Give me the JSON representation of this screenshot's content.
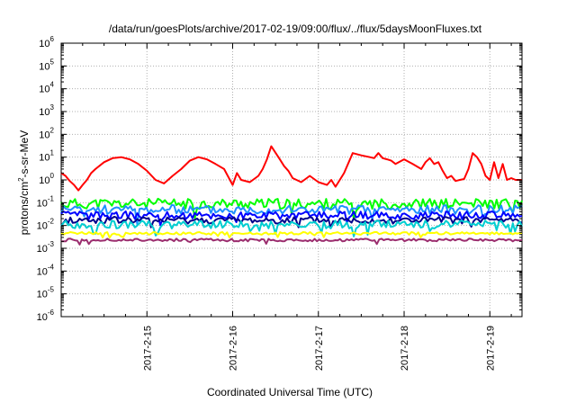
{
  "chart_data": {
    "type": "line",
    "title": "/data/run/goesPlots/archive/2017-02-19/09:00/flux/../flux/5daysMoonFluxes.txt",
    "xlabel": "Coordinated Universal Time (UTC)",
    "ylabel_main": "protons/cm",
    "ylabel_sup": "2",
    "ylabel_tail": "-s-sr-MeV",
    "y_scale": "log",
    "ylim": [
      1e-06,
      1000000.0
    ],
    "y_ticks": [
      {
        "exp": -6
      },
      {
        "exp": -5
      },
      {
        "exp": -4
      },
      {
        "exp": -3
      },
      {
        "exp": -2
      },
      {
        "exp": -1
      },
      {
        "exp": 0
      },
      {
        "exp": 1
      },
      {
        "exp": 2
      },
      {
        "exp": 3
      },
      {
        "exp": 4
      },
      {
        "exp": 5
      },
      {
        "exp": 6
      }
    ],
    "y_tick_base": "10",
    "xlim": [
      "2017-02-14 00:00",
      "2017-02-19 09:00"
    ],
    "x_ticks": [
      "2017-2-15",
      "2017-2-16",
      "2017-2-17",
      "2017-2-18",
      "2017-2-19"
    ],
    "grid": true,
    "series": [
      {
        "color": "#ff0000",
        "x_days": [
          0.0,
          0.05,
          0.1,
          0.15,
          0.2,
          0.25,
          0.3,
          0.35,
          0.4,
          0.5,
          0.6,
          0.7,
          0.8,
          0.9,
          1.0,
          1.1,
          1.2,
          1.3,
          1.4,
          1.5,
          1.6,
          1.7,
          1.8,
          1.9,
          2.0,
          2.05,
          2.1,
          2.2,
          2.3,
          2.35,
          2.4,
          2.45,
          2.55,
          2.6,
          2.65,
          2.7,
          2.8,
          2.9,
          3.0,
          3.1,
          3.15,
          3.2,
          3.3,
          3.4,
          3.5,
          3.6,
          3.65,
          3.7,
          3.75,
          3.8,
          3.85,
          3.9,
          4.0,
          4.1,
          4.2,
          4.25,
          4.3,
          4.35,
          4.4,
          4.45,
          4.5,
          4.55,
          4.6,
          4.65,
          4.7,
          4.75,
          4.8,
          4.85,
          4.9,
          4.95,
          5.0,
          5.05,
          5.1,
          5.15,
          5.2,
          5.25,
          5.3,
          5.375
        ],
        "values": [
          2.0,
          1.5,
          0.9,
          0.6,
          0.35,
          0.6,
          1.0,
          2.0,
          3.0,
          6.0,
          9.0,
          10.0,
          8.0,
          5.0,
          2.5,
          1.0,
          0.7,
          1.5,
          3.0,
          7.0,
          10.0,
          8.0,
          5.0,
          3.0,
          0.6,
          2.0,
          1.0,
          0.8,
          1.5,
          3.0,
          8.0,
          30.0,
          8.0,
          4.0,
          2.5,
          1.2,
          0.8,
          1.5,
          0.8,
          0.6,
          1.0,
          0.5,
          2.0,
          15.0,
          12.0,
          10.0,
          9.0,
          15.0,
          9.0,
          8.0,
          7.0,
          5.0,
          8.0,
          5.0,
          3.0,
          6.0,
          9.0,
          5.0,
          6.0,
          2.5,
          1.2,
          1.5,
          0.9,
          1.0,
          1.1,
          3.0,
          15.0,
          10.0,
          5.0,
          1.5,
          1.0,
          6.0,
          1.2,
          5.0,
          1.0,
          1.2,
          1.0,
          1.0
        ]
      },
      {
        "color": "#00ff00",
        "base": 0.09,
        "amp": 0.45,
        "seed": 11
      },
      {
        "color": "#1e90ff",
        "base": 0.05,
        "amp": 0.4,
        "seed": 23
      },
      {
        "color": "#0000ff",
        "base": 0.028,
        "amp": 0.35,
        "seed": 37
      },
      {
        "color": "#00008b",
        "base": 0.017,
        "amp": 0.3,
        "seed": 41
      },
      {
        "color": "#00ced1",
        "base": 0.011,
        "amp": 0.35,
        "seed": 53
      },
      {
        "color": "#ffff00",
        "base": 0.0045,
        "amp": 0.12,
        "seed": 61
      },
      {
        "color": "#9b2d6e",
        "base": 0.0023,
        "amp": 0.12,
        "seed": 71
      }
    ]
  }
}
